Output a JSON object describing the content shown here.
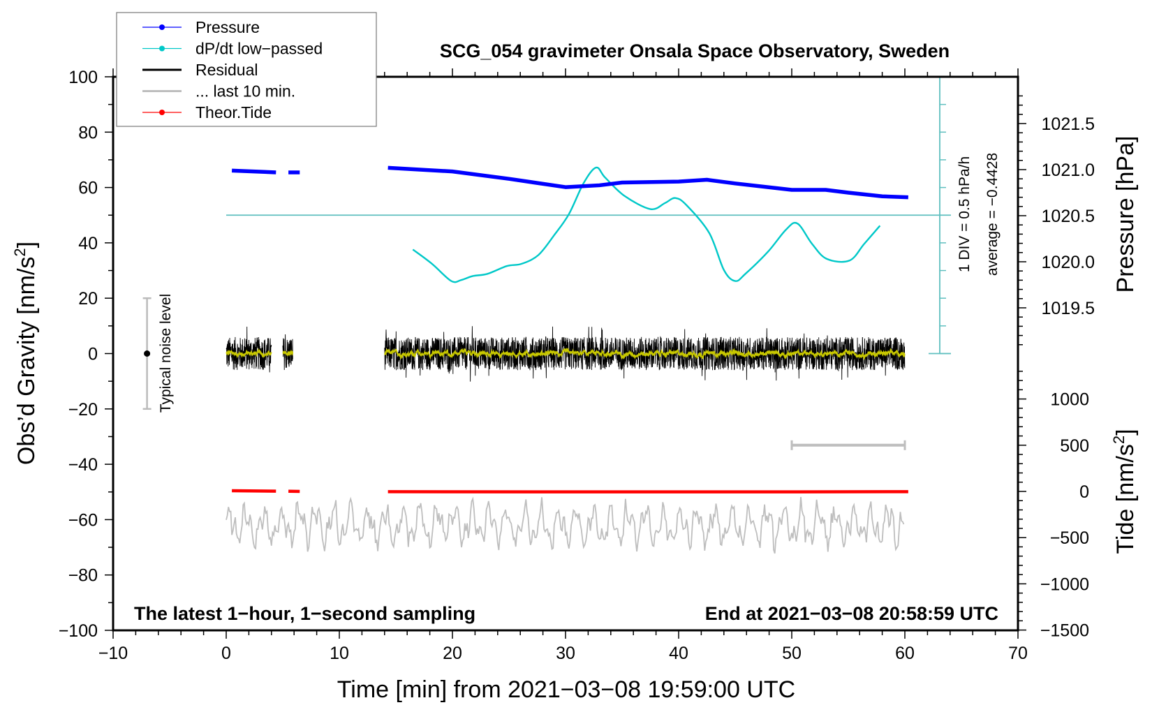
{
  "chart_data": {
    "type": "line",
    "title": "SCG_054 gravimeter Onsala Space Observatory, Sweden",
    "xlabel": "Time [min] from 2021−03−08 19:59:00 UTC",
    "ylabel_left": "Obs’d Gravity [nm/s²]",
    "ylabel_left_main": "Obs’d Gravity [nm/s",
    "ylabel_pressure": "Pressure [hPa]",
    "ylabel_tide_main": "Tide [nm/s",
    "sup2": "2",
    "close_bracket": "]",
    "xlim": [
      -10,
      70
    ],
    "ylim_left": [
      -100,
      100
    ],
    "ylim_tide": [
      -1500,
      1000
    ],
    "pressure_ticks": [
      "1019.5",
      "1020.0",
      "1020.5",
      "1021.0",
      "1021.5"
    ],
    "x_ticks": [
      "−10",
      "0",
      "10",
      "20",
      "30",
      "40",
      "50",
      "60",
      "70"
    ],
    "left_ticks": [
      "−100",
      "−80",
      "−60",
      "−40",
      "−20",
      "0",
      "20",
      "40",
      "60",
      "80",
      "100"
    ],
    "tide_ticks": [
      "−1500",
      "−1000",
      "−500",
      "0",
      "500",
      "1000"
    ],
    "footer_left": "The latest 1−hour, 1−second sampling",
    "footer_right": "End at 2021−03−08 20:58:59 UTC",
    "dpdt_scale_label": "1 DIV = 0.5 hPa/h",
    "dpdt_average_label": "average = −0.4428",
    "noise_label": "Typical noise level",
    "noise_level": 20,
    "legend": [
      {
        "label": "Pressure",
        "color": "#0000ff",
        "marker": true
      },
      {
        "label": "dP/dt low−passed",
        "color": "#00c8c8",
        "marker": true
      },
      {
        "label": "Residual",
        "color": "#000000",
        "marker": false
      },
      {
        "label": "... last 10 min.",
        "color": "#bebebe",
        "marker": false
      },
      {
        "label": "Theor.Tide",
        "color": "#ff0000",
        "marker": true
      }
    ],
    "colors": {
      "pressure": "#0000ff",
      "dpdt": "#00c8c8",
      "dpdt_axis": "#5fbfbf",
      "residual": "#000000",
      "smooth": "#c8c800",
      "last10": "#bebebe",
      "tide": "#ff0000"
    },
    "data_segments_min": [
      [
        0,
        4.0
      ],
      [
        5.0,
        5.9
      ],
      [
        14.0,
        60.0
      ]
    ],
    "pressure_hpa": {
      "t": [
        0.5,
        4.4,
        5.5,
        6.5,
        14.3,
        20,
        25,
        30,
        33,
        35,
        40,
        42.5,
        45,
        50,
        53,
        55,
        58,
        60.3
      ],
      "v": [
        1020.99,
        1020.97,
        1020.97,
        1020.97,
        1021.02,
        1020.98,
        1020.9,
        1020.81,
        1020.83,
        1020.86,
        1020.87,
        1020.89,
        1020.85,
        1020.78,
        1020.78,
        1020.75,
        1020.71,
        1020.7
      ],
      "breaks_after_index": [
        1,
        3
      ]
    },
    "dpdt_hpa_per_h": {
      "zero_level_gravity": 50,
      "gravity_per_div": 10,
      "hpa_h_per_div": 0.5,
      "t": [
        16.5,
        18.2,
        19.9,
        20.8,
        21.8,
        23.1,
        24.8,
        26.1,
        27.6,
        29.0,
        30.3,
        31.6,
        32.7,
        33.5,
        35.2,
        37.5,
        38.8,
        39.7,
        40.7,
        42.7,
        44.0,
        45.0,
        45.9,
        47.9,
        49.5,
        50.5,
        51.8,
        53.1,
        55.1,
        56.4,
        57.8
      ],
      "v": [
        -0.62,
        -0.88,
        -1.19,
        -1.17,
        -1.1,
        -1.06,
        -0.92,
        -0.88,
        -0.72,
        -0.36,
        0.02,
        0.58,
        0.86,
        0.68,
        0.35,
        0.11,
        0.22,
        0.31,
        0.18,
        -0.32,
        -0.99,
        -1.19,
        -1.06,
        -0.66,
        -0.26,
        -0.15,
        -0.52,
        -0.79,
        -0.82,
        -0.52,
        -0.19
      ]
    },
    "residual_nm_s2": {
      "center": 0,
      "approx_range": [
        -12,
        12
      ]
    },
    "last10_nm_s2": {
      "offset": -62,
      "approx_range": [
        -73,
        -51
      ],
      "t_range": [
        0,
        60
      ]
    },
    "tide_nm_s2": {
      "t": [
        0.5,
        4.4,
        5.5,
        6.5,
        14.3,
        30,
        45,
        60.3
      ],
      "v": [
        8,
        3,
        2,
        0,
        -3,
        -5,
        -5,
        -3
      ],
      "breaks_after_index": [
        1,
        3
      ]
    },
    "last10_marker": {
      "t_range": [
        50,
        60
      ],
      "tide_level": 500
    }
  }
}
